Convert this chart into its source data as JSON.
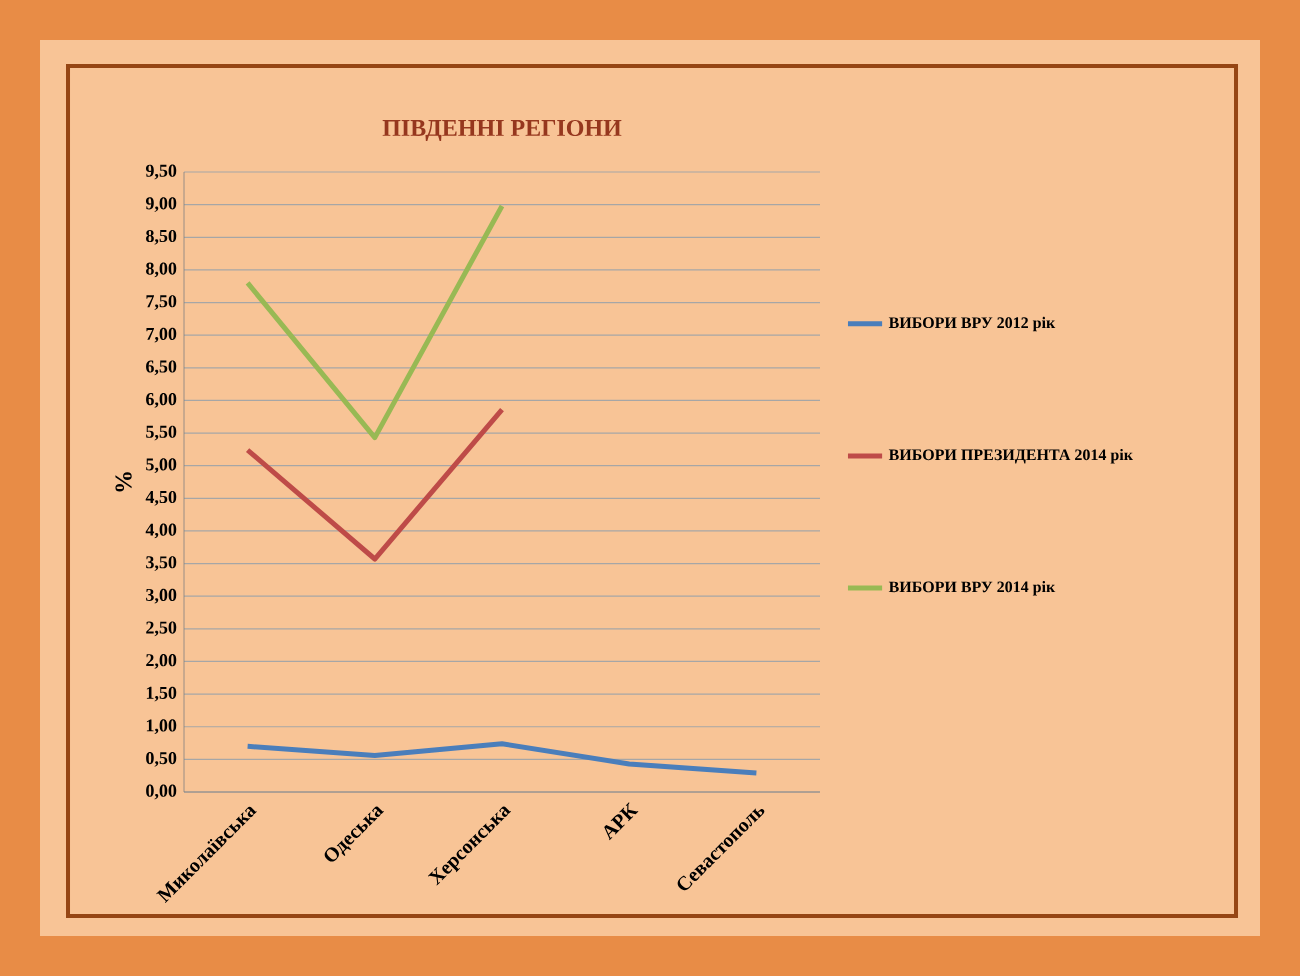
{
  "chart_data": {
    "type": "line",
    "title": "ПІВДЕННІ РЕГІОНИ",
    "ylabel": "%",
    "categories": [
      "Миколаївська",
      "Одеська",
      "Херсонська",
      "АРК",
      "Севастополь"
    ],
    "series": [
      {
        "name": "ВИБОРИ ВРУ 2012 рік",
        "color": "#4a7ebb",
        "values": [
          0.7,
          0.56,
          0.74,
          0.43,
          0.29
        ]
      },
      {
        "name": "ВИБОРИ ПРЕЗИДЕНТА  2014 рік",
        "color": "#be4b48",
        "values": [
          5.24,
          3.57,
          5.86,
          null,
          null
        ]
      },
      {
        "name": "ВИБОРИ ВРУ 2014 рік",
        "color": "#98b954",
        "values": [
          7.8,
          5.43,
          8.98,
          null,
          null
        ]
      }
    ],
    "ylim": [
      0,
      9.5
    ],
    "yticks": [
      {
        "value": 0,
        "label": "0,00"
      },
      {
        "value": 0.5,
        "label": "0,50"
      },
      {
        "value": 1,
        "label": "1,00"
      },
      {
        "value": 1.5,
        "label": "1,50"
      },
      {
        "value": 2,
        "label": "2,00"
      },
      {
        "value": 2.5,
        "label": "2,50"
      },
      {
        "value": 3,
        "label": "3,00"
      },
      {
        "value": 3.5,
        "label": "3,50"
      },
      {
        "value": 4,
        "label": "4,00"
      },
      {
        "value": 4.5,
        "label": "4,50"
      },
      {
        "value": 5,
        "label": "5,00"
      },
      {
        "value": 5.5,
        "label": "5,50"
      },
      {
        "value": 6,
        "label": "6,00"
      },
      {
        "value": 6.5,
        "label": "6,50"
      },
      {
        "value": 7,
        "label": "7,00"
      },
      {
        "value": 7.5,
        "label": "7,50"
      },
      {
        "value": 8,
        "label": "8,00"
      },
      {
        "value": 8.5,
        "label": "8,50"
      },
      {
        "value": 9,
        "label": "9,00"
      },
      {
        "value": 9.5,
        "label": "9,50"
      }
    ],
    "grid": "y",
    "legend": "right",
    "marker": "none",
    "line_style": "solid"
  }
}
